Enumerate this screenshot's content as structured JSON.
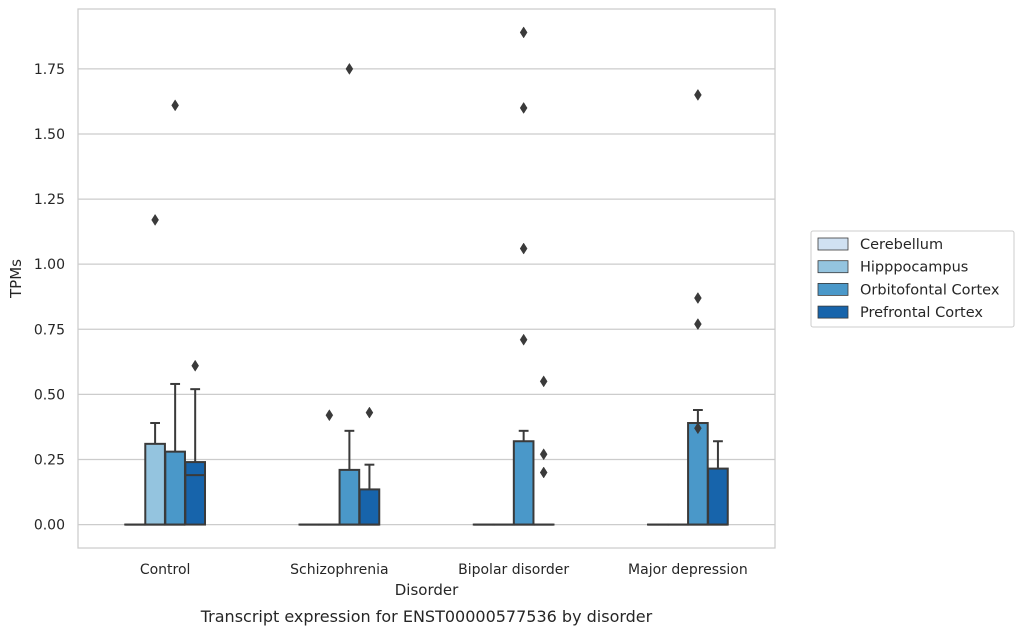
{
  "chart_data": {
    "type": "box",
    "title": "",
    "caption": "Transcript expression for ENST00000577536 by disorder",
    "xlabel": "Disorder",
    "ylabel": "TPMs",
    "ylim": [
      -0.09,
      1.98
    ],
    "yticks": [
      "0.00",
      "0.25",
      "0.50",
      "0.75",
      "1.00",
      "1.25",
      "1.50",
      "1.75"
    ],
    "ytick_values": [
      0,
      0.25,
      0.5,
      0.75,
      1.0,
      1.25,
      1.5,
      1.75
    ],
    "grid": true,
    "legend_position": "right",
    "categories": [
      "Control",
      "Schizophrenia",
      "Bipolar disorder",
      "Major depression"
    ],
    "series": [
      {
        "name": "Cerebellum",
        "color": "#d0e1f2",
        "boxes": [
          {
            "q1": 0,
            "median": 0,
            "q3": 0,
            "whisker_low": 0,
            "whisker_high": 0,
            "outliers": []
          },
          {
            "q1": 0,
            "median": 0,
            "q3": 0,
            "whisker_low": 0,
            "whisker_high": 0,
            "outliers": []
          },
          {
            "q1": 0,
            "median": 0,
            "q3": 0,
            "whisker_low": 0,
            "whisker_high": 0,
            "outliers": []
          },
          {
            "q1": 0,
            "median": 0,
            "q3": 0,
            "whisker_low": 0,
            "whisker_high": 0,
            "outliers": []
          }
        ]
      },
      {
        "name": "Hipppocampus",
        "color": "#94c4df",
        "boxes": [
          {
            "q1": 0,
            "median": 0,
            "q3": 0.31,
            "whisker_low": 0,
            "whisker_high": 0.39,
            "outliers": [
              1.17
            ]
          },
          {
            "q1": 0,
            "median": 0,
            "q3": 0,
            "whisker_low": 0,
            "whisker_high": 0,
            "outliers": [
              0.42
            ]
          },
          {
            "q1": 0,
            "median": 0,
            "q3": 0,
            "whisker_low": 0,
            "whisker_high": 0,
            "outliers": []
          },
          {
            "q1": 0,
            "median": 0,
            "q3": 0,
            "whisker_low": 0,
            "whisker_high": 0,
            "outliers": []
          }
        ]
      },
      {
        "name": "Orbitofontal Cortex",
        "color": "#4a98c9",
        "boxes": [
          {
            "q1": 0,
            "median": 0,
            "q3": 0.28,
            "whisker_low": 0,
            "whisker_high": 0.54,
            "outliers": [
              1.61
            ]
          },
          {
            "q1": 0,
            "median": 0,
            "q3": 0.21,
            "whisker_low": 0,
            "whisker_high": 0.36,
            "outliers": [
              1.75
            ]
          },
          {
            "q1": 0,
            "median": 0,
            "q3": 0.32,
            "whisker_low": 0,
            "whisker_high": 0.36,
            "outliers": [
              0.71,
              1.06,
              1.6,
              1.89
            ]
          },
          {
            "q1": 0,
            "median": 0,
            "q3": 0.39,
            "whisker_low": 0,
            "whisker_high": 0.44,
            "outliers": [
              0.37,
              0.77,
              0.87,
              1.65
            ]
          }
        ]
      },
      {
        "name": "Prefrontal Cortex",
        "color": "#1764ab",
        "boxes": [
          {
            "q1": 0,
            "median": 0.19,
            "q3": 0.24,
            "whisker_low": 0,
            "whisker_high": 0.52,
            "outliers": [
              0.61
            ]
          },
          {
            "q1": 0,
            "median": 0,
            "q3": 0.135,
            "whisker_low": 0,
            "whisker_high": 0.23,
            "outliers": [
              0.43
            ]
          },
          {
            "q1": 0,
            "median": 0,
            "q3": 0,
            "whisker_low": 0,
            "whisker_high": 0,
            "outliers": [
              0.2,
              0.27,
              0.55
            ]
          },
          {
            "q1": 0,
            "median": 0,
            "q3": 0.215,
            "whisker_low": 0,
            "whisker_high": 0.32,
            "outliers": []
          }
        ]
      }
    ]
  }
}
